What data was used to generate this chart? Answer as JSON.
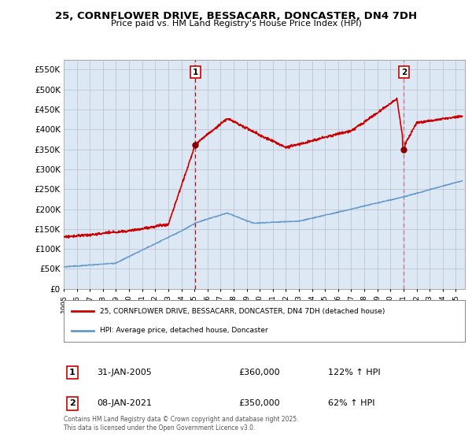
{
  "title_line1": "25, CORNFLOWER DRIVE, BESSACARR, DONCASTER, DN4 7DH",
  "title_line2": "Price paid vs. HM Land Registry's House Price Index (HPI)",
  "ylim": [
    0,
    575000
  ],
  "yticks": [
    0,
    50000,
    100000,
    150000,
    200000,
    250000,
    300000,
    350000,
    400000,
    450000,
    500000,
    550000
  ],
  "ytick_labels": [
    "£0",
    "£50K",
    "£100K",
    "£150K",
    "£200K",
    "£250K",
    "£300K",
    "£350K",
    "£400K",
    "£450K",
    "£500K",
    "£550K"
  ],
  "sale1_date": 2005.08,
  "sale1_price": 360000,
  "sale2_date": 2021.03,
  "sale2_price": 350000,
  "line_color_red": "#cc0000",
  "line_color_blue": "#6699cc",
  "vline_color": "#cc0000",
  "plot_bg_color": "#dce9f5",
  "background_color": "#ffffff",
  "grid_color": "#bbbbcc",
  "legend_label1": "25, CORNFLOWER DRIVE, BESSACARR, DONCASTER, DN4 7DH (detached house)",
  "legend_label2": "HPI: Average price, detached house, Doncaster",
  "annotation1_date": "31-JAN-2005",
  "annotation1_price": "£360,000",
  "annotation1_hpi": "122% ↑ HPI",
  "annotation2_date": "08-JAN-2021",
  "annotation2_price": "£350,000",
  "annotation2_hpi": "62% ↑ HPI",
  "footnote": "Contains HM Land Registry data © Crown copyright and database right 2025.\nThis data is licensed under the Open Government Licence v3.0."
}
